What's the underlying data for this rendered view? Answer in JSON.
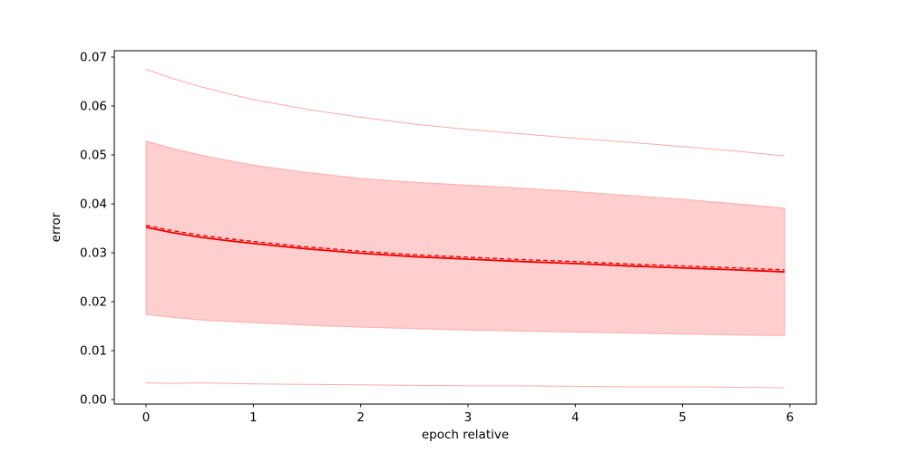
{
  "figure": {
    "background": "#ffffff"
  },
  "chart_data": {
    "type": "line",
    "title": "",
    "xlabel": "epoch relative",
    "ylabel": "error",
    "xlim": [
      -0.296,
      6.246
    ],
    "ylim": [
      -0.00093,
      0.0713
    ],
    "grid": false,
    "legend": null,
    "axis_color": "#000000",
    "x": [
      0,
      0.25,
      0.5,
      0.75,
      1,
      1.5,
      2,
      2.5,
      3,
      3.5,
      4,
      4.5,
      5,
      5.5,
      5.95
    ],
    "xticks": [
      {
        "v": 0,
        "label": "0"
      },
      {
        "v": 1,
        "label": "1"
      },
      {
        "v": 2,
        "label": "2"
      },
      {
        "v": 3,
        "label": "3"
      },
      {
        "v": 4,
        "label": "4"
      },
      {
        "v": 5,
        "label": "5"
      },
      {
        "v": 6,
        "label": "6"
      }
    ],
    "yticks": [
      {
        "v": 0.0,
        "label": "0.00"
      },
      {
        "v": 0.01,
        "label": "0.01"
      },
      {
        "v": 0.02,
        "label": "0.02"
      },
      {
        "v": 0.03,
        "label": "0.03"
      },
      {
        "v": 0.04,
        "label": "0.04"
      },
      {
        "v": 0.05,
        "label": "0.05"
      },
      {
        "v": 0.06,
        "label": "0.06"
      },
      {
        "v": 0.07,
        "label": "0.07"
      }
    ],
    "band": {
      "name": "std-band",
      "fill": "#ffcfcf",
      "edge": "#ffb3b3",
      "upper": [
        0.0528,
        0.0513,
        0.05,
        0.0489,
        0.0479,
        0.0464,
        0.0452,
        0.0444,
        0.0438,
        0.0432,
        0.0425,
        0.0417,
        0.0409,
        0.04,
        0.0391
      ],
      "lower": [
        0.0174,
        0.0168,
        0.0163,
        0.016,
        0.0157,
        0.0152,
        0.0148,
        0.0145,
        0.0142,
        0.014,
        0.0138,
        0.0136,
        0.0134,
        0.0132,
        0.0131
      ]
    },
    "series": [
      {
        "name": "max-line",
        "color": "#ffaaaa",
        "width": 1.0,
        "dash": null,
        "values": [
          0.0675,
          0.0656,
          0.064,
          0.0626,
          0.0613,
          0.0593,
          0.0577,
          0.0563,
          0.0552,
          0.0543,
          0.0534,
          0.0526,
          0.0517,
          0.0508,
          0.0498
        ]
      },
      {
        "name": "min-line",
        "color": "#ffaaaa",
        "width": 1.0,
        "dash": null,
        "values": [
          0.0034,
          0.0033,
          0.0034,
          0.0033,
          0.0032,
          0.0031,
          0.003,
          0.0029,
          0.0028,
          0.0028,
          0.0027,
          0.0026,
          0.0026,
          0.0025,
          0.0024
        ]
      },
      {
        "name": "mean-line",
        "color": "#ee0000",
        "width": 1.8,
        "dash": null,
        "values": [
          0.0352,
          0.0341,
          0.0332,
          0.0325,
          0.0319,
          0.0308,
          0.0299,
          0.0292,
          0.0287,
          0.0282,
          0.0278,
          0.0273,
          0.0269,
          0.0265,
          0.0261
        ]
      },
      {
        "name": "median-line",
        "color": "#ff0000",
        "width": 1.4,
        "dash": "5 3",
        "values": [
          0.0356,
          0.0345,
          0.0336,
          0.0329,
          0.0323,
          0.0312,
          0.0303,
          0.0296,
          0.0291,
          0.0286,
          0.0282,
          0.0277,
          0.0273,
          0.0269,
          0.0265
        ]
      }
    ]
  }
}
